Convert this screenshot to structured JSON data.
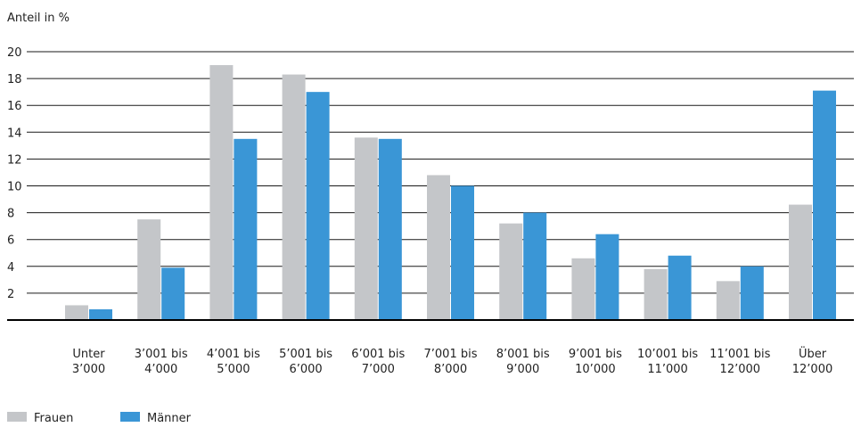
{
  "chart_data": {
    "type": "bar",
    "title": "",
    "xlabel": "",
    "ylabel": "Anteil in %",
    "ylim": [
      0,
      20
    ],
    "yticks": [
      2,
      4,
      6,
      8,
      10,
      12,
      14,
      16,
      18,
      20
    ],
    "grid": true,
    "legend_position": "bottom-left",
    "categories": [
      [
        "Unter",
        "3’000"
      ],
      [
        "3’001 bis",
        "4’000"
      ],
      [
        "4’001 bis",
        "5’000"
      ],
      [
        "5’001 bis",
        "6’000"
      ],
      [
        "6’001 bis",
        "7’000"
      ],
      [
        "7’001 bis",
        "8’000"
      ],
      [
        "8’001 bis",
        "9’000"
      ],
      [
        "9’001 bis",
        "10’000"
      ],
      [
        "10’001 bis",
        "11’000"
      ],
      [
        "11’001 bis",
        "12’000"
      ],
      [
        "Über",
        "12’000"
      ]
    ],
    "series": [
      {
        "name": "Frauen",
        "color": "#c4c6c9",
        "values": [
          1.1,
          7.5,
          19.0,
          18.3,
          13.6,
          10.8,
          7.2,
          4.6,
          3.8,
          2.9,
          8.6
        ]
      },
      {
        "name": "Männer",
        "color": "#3a96d6",
        "values": [
          0.8,
          3.9,
          13.5,
          17.0,
          13.5,
          10.0,
          8.0,
          6.4,
          4.8,
          4.0,
          17.1
        ]
      }
    ]
  }
}
